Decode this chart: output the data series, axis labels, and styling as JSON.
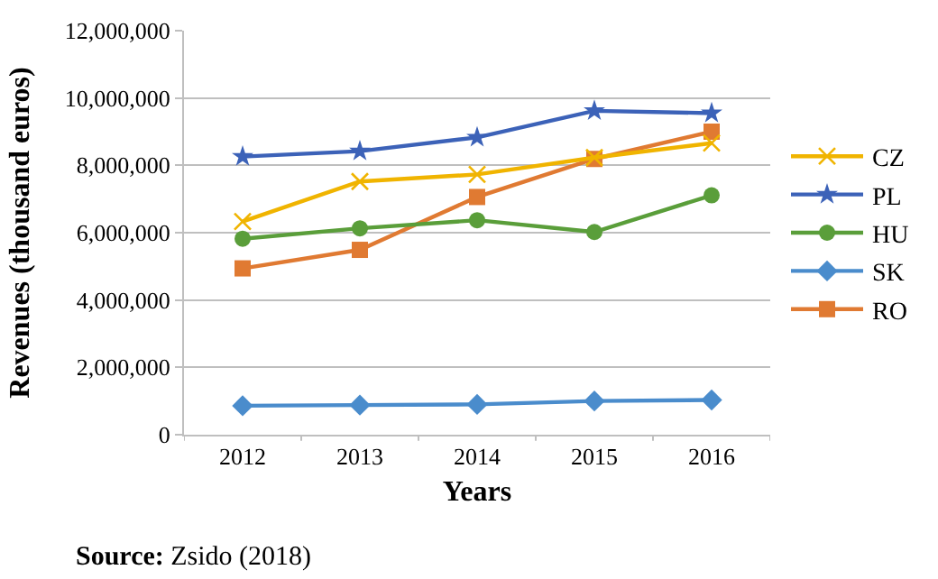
{
  "chart_data": {
    "type": "line",
    "xlabel": "Years",
    "ylabel": "Revenues (thousand euros)",
    "categories": [
      "2012",
      "2013",
      "2014",
      "2015",
      "2016"
    ],
    "series": [
      {
        "name": "CZ",
        "color": "#f0b400",
        "marker": "cross",
        "values": [
          6330000,
          7520000,
          7730000,
          8230000,
          8660000
        ]
      },
      {
        "name": "PL",
        "color": "#3c62b8",
        "marker": "star",
        "values": [
          8260000,
          8420000,
          8830000,
          9620000,
          9550000
        ]
      },
      {
        "name": "HU",
        "color": "#5a9e3a",
        "marker": "circle",
        "values": [
          5820000,
          6130000,
          6370000,
          6020000,
          7110000
        ]
      },
      {
        "name": "SK",
        "color": "#4a8ccc",
        "marker": "diamond",
        "values": [
          860000,
          880000,
          900000,
          1000000,
          1030000
        ]
      },
      {
        "name": "RO",
        "color": "#e07a32",
        "marker": "square",
        "values": [
          4940000,
          5490000,
          7060000,
          8190000,
          9000000
        ]
      }
    ],
    "ylim": [
      0,
      12000000
    ],
    "yticks": [
      {
        "value": 0,
        "label": "0"
      },
      {
        "value": 2000000,
        "label": "2,000,000"
      },
      {
        "value": 4000000,
        "label": "4,000,000"
      },
      {
        "value": 6000000,
        "label": "6,000,000"
      },
      {
        "value": 8000000,
        "label": "8,000,000"
      },
      {
        "value": 10000000,
        "label": "10,000,000"
      },
      {
        "value": 12000000,
        "label": "12,000,000"
      }
    ],
    "grid": "y",
    "legend": "right",
    "line_style": "solid",
    "annotations": [
      "Source: Zsido (2018)"
    ]
  }
}
